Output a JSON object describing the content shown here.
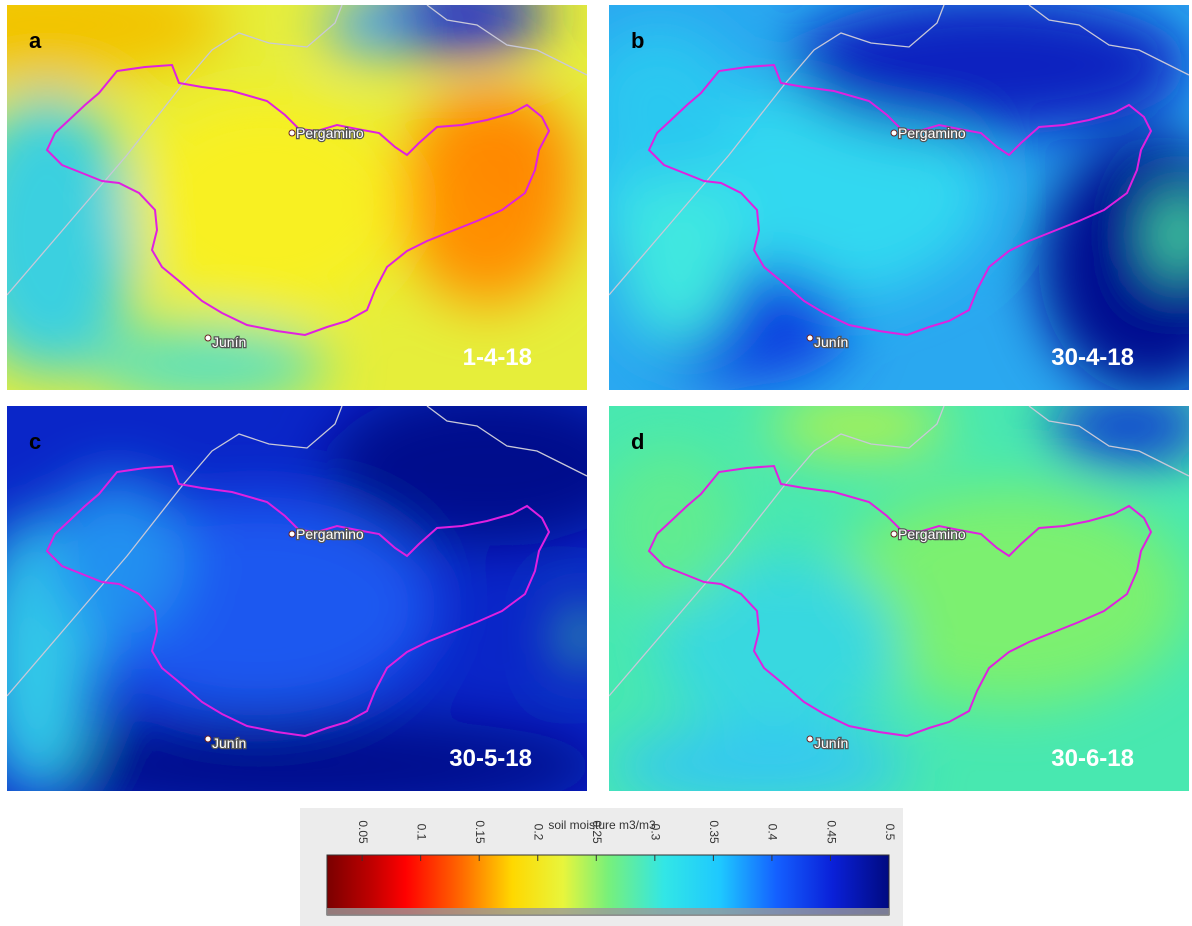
{
  "panels": [
    {
      "letter": "a",
      "date": "1-4-18",
      "cities": [
        "Pergamino",
        "Junín"
      ]
    },
    {
      "letter": "b",
      "date": "30-4-18",
      "cities": [
        "Pergamino",
        "Junín"
      ]
    },
    {
      "letter": "c",
      "date": "30-5-18",
      "cities": [
        "Pergamino",
        "Junín"
      ]
    },
    {
      "letter": "d",
      "date": "30-6-18",
      "cities": [
        "Pergamino",
        "Junín"
      ]
    }
  ],
  "colorbar": {
    "title": "soil moisture m3/m3",
    "lim": [
      0.02,
      0.5
    ],
    "ticks": [
      0.05,
      0.1,
      0.15,
      0.2,
      0.25,
      0.3,
      0.35,
      0.4,
      0.45,
      0.5
    ]
  }
}
